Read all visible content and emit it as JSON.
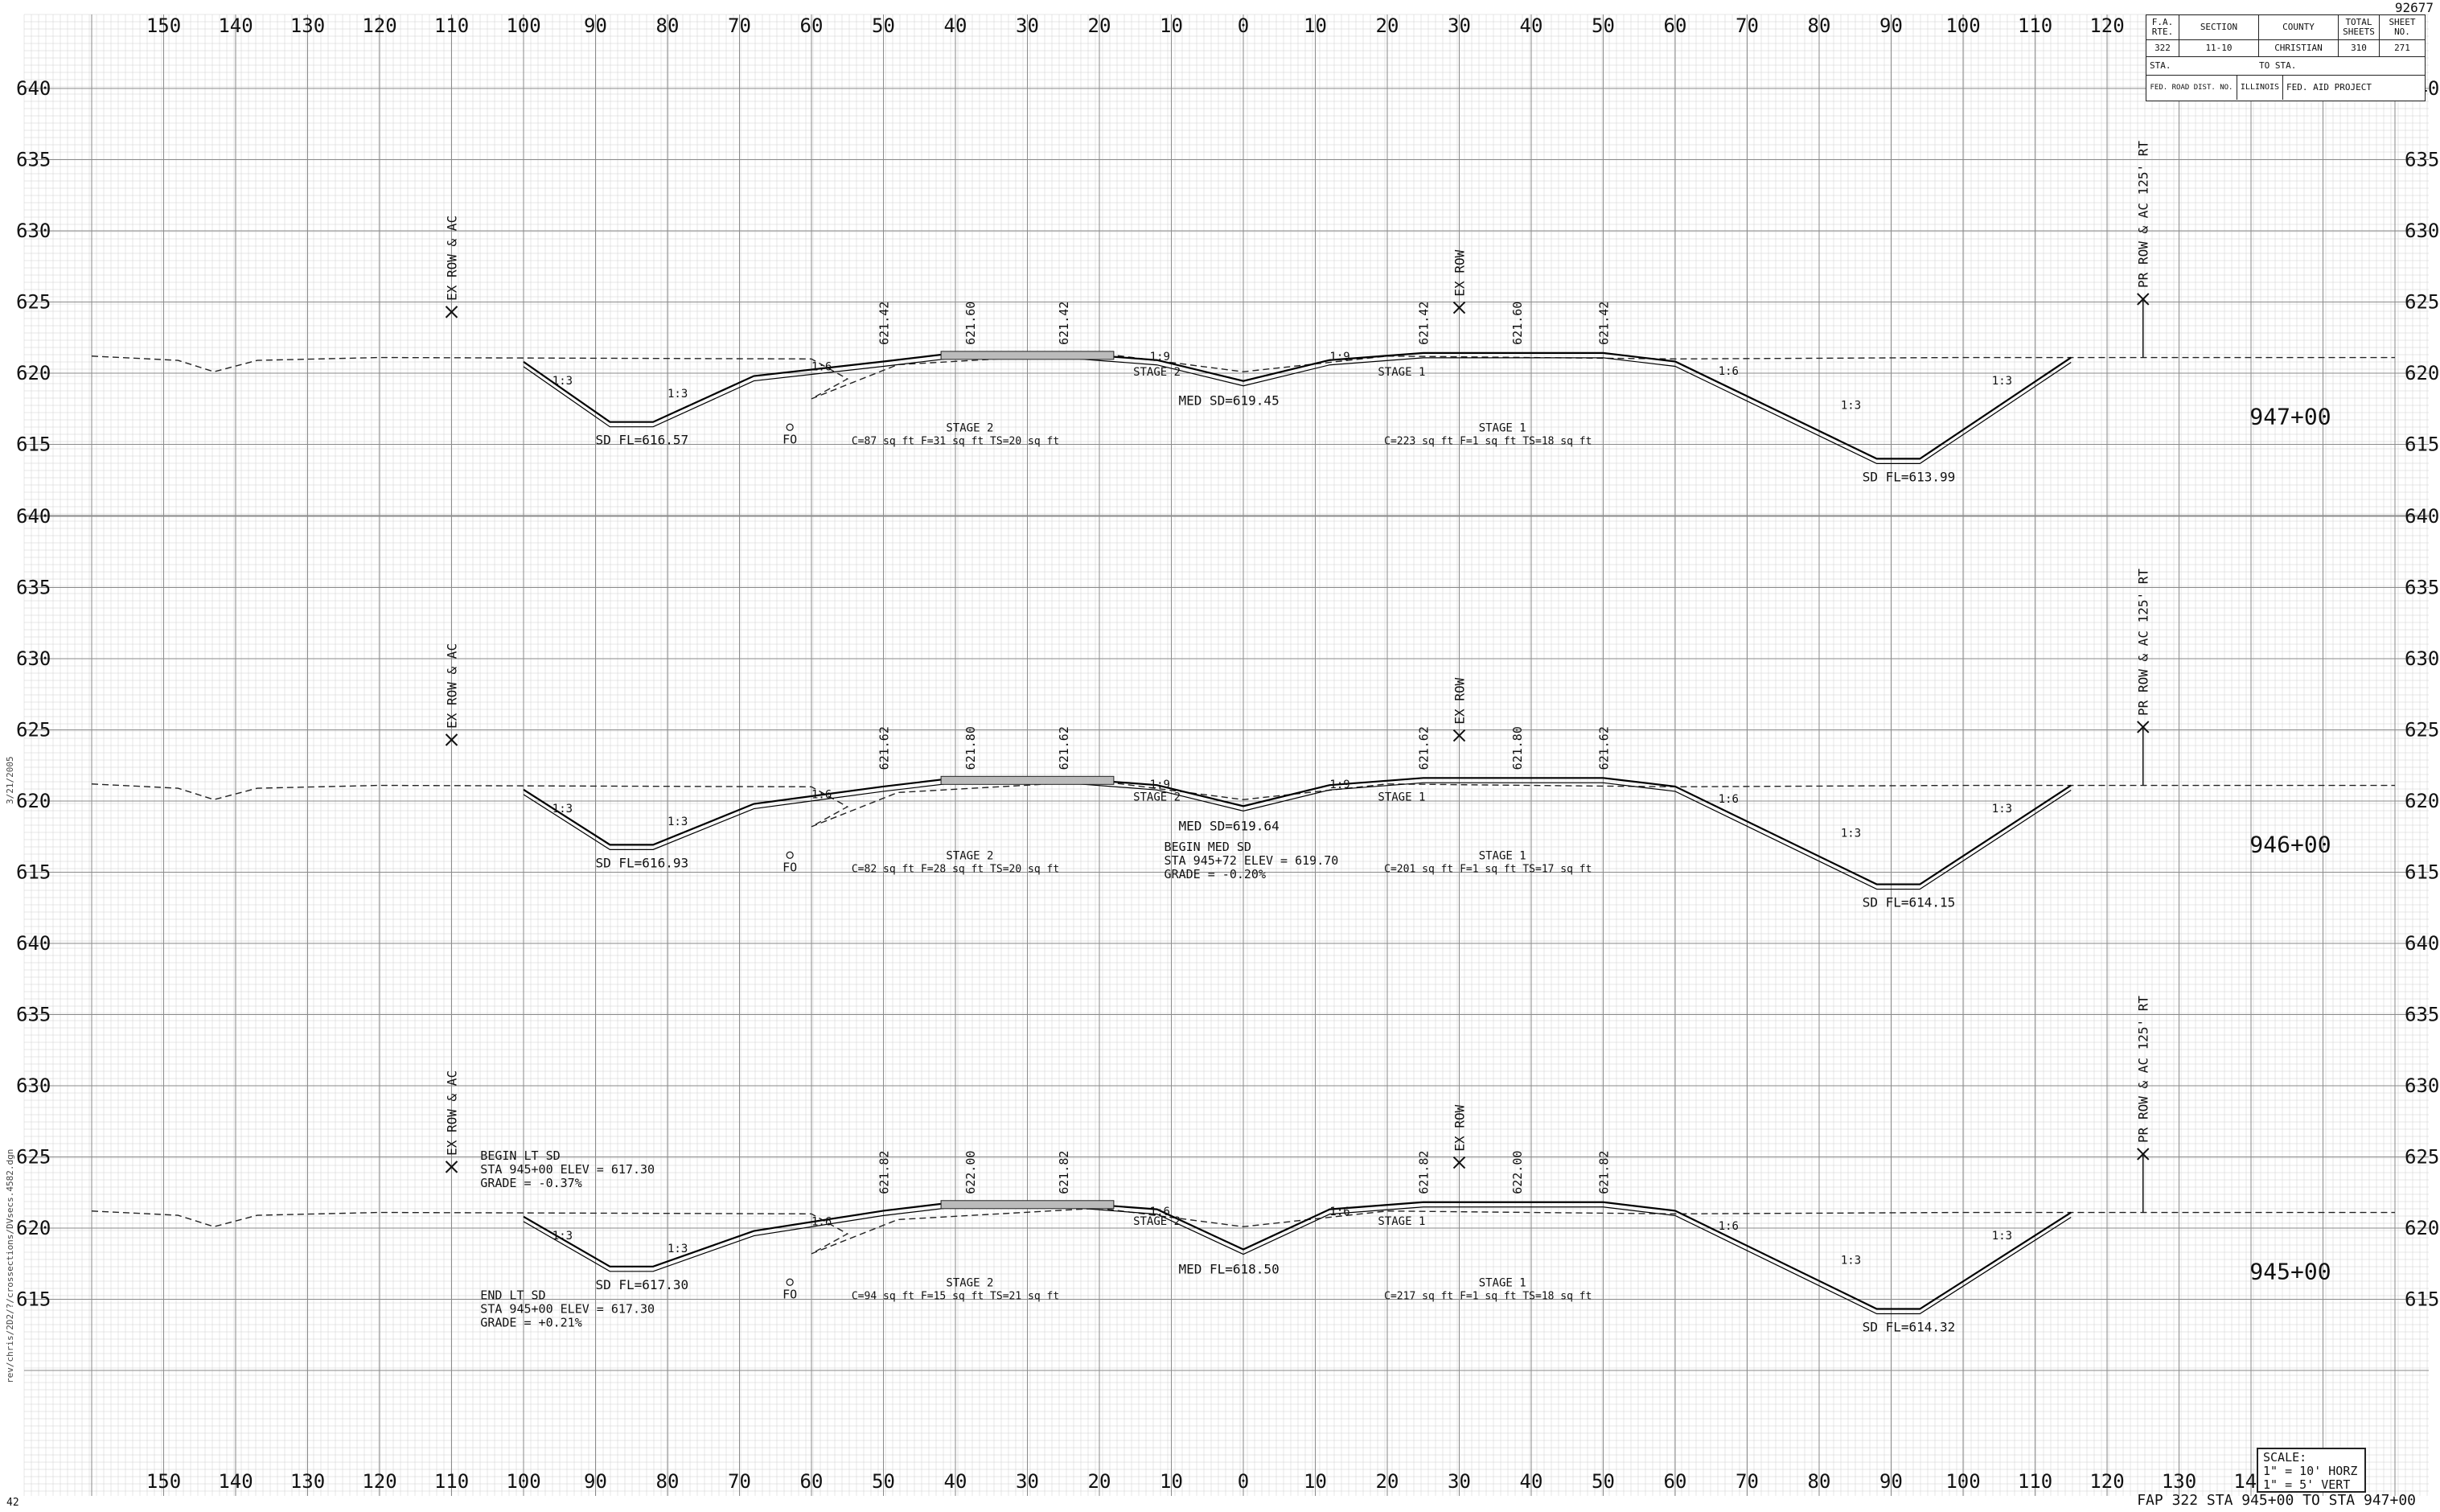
{
  "sheet_number": "92677",
  "footer_title": "FAP 322 STA 945+00 TO STA 947+00",
  "page_corner": "42",
  "side_text": {
    "filename": "rev/chris/2D2/?/crossections/DVsecs.4582.dgn",
    "date": "3/21/2005"
  },
  "title_block": {
    "col_heads": [
      "F.A.\nRTE.",
      "SECTION",
      "COUNTY",
      "TOTAL\nSHEETS",
      "SHEET\nNO."
    ],
    "values": [
      "322",
      "11-10",
      "CHRISTIAN",
      "310",
      "271"
    ],
    "sta_label": "STA.",
    "to_sta_label": "TO STA.",
    "district_label": "FED. ROAD DIST. NO.",
    "state": "ILLINOIS",
    "project_label": "FED. AID PROJECT"
  },
  "scale_note": {
    "title": "SCALE:",
    "horz": "1\" = 10' HORZ",
    "vert": "1\" = 5' VERT"
  },
  "offset_labels": [
    "150",
    "140",
    "130",
    "120",
    "110",
    "100",
    "90",
    "80",
    "70",
    "60",
    "50",
    "40",
    "30",
    "20",
    "10",
    "0",
    "10",
    "20",
    "30",
    "40",
    "50",
    "60",
    "70",
    "80",
    "90",
    "100",
    "110",
    "120",
    "130",
    "140",
    "150"
  ],
  "sections": [
    {
      "station": "947+00",
      "elev_labels": [
        "640",
        "635",
        "630",
        "625",
        "620",
        "615"
      ],
      "ex_row_left": "EX ROW & AC",
      "ex_row_mid": "EX ROW",
      "pr_row_right": "PR ROW & AC 125' RT",
      "grade_labels": [
        "621.42",
        "621.60",
        "621.42",
        "621.42",
        "621.60",
        "621.42"
      ],
      "slopes": [
        "1:3",
        "1:3",
        "1:6",
        "1:9",
        "1:9",
        "1:6",
        "1:3",
        "1:3"
      ],
      "stage2_label": "STAGE 2",
      "stage1_label": "STAGE 1",
      "lt_ditch": "SD FL=616.57",
      "med_ditch": "MED SD=619.45",
      "rt_ditch": "SD FL=613.99",
      "fo": "FO",
      "stage2_title": "STAGE 2",
      "stage2_qty": "C=87 sq ft   F=31 sq ft   TS=20 sq ft",
      "stage1_title": "STAGE 1",
      "stage1_qty": "C=223 sq ft   F=1 sq ft   TS=18 sq ft",
      "note_left": [],
      "note_left_lower": [],
      "note_med": []
    },
    {
      "station": "946+00",
      "elev_labels": [
        "640",
        "635",
        "630",
        "625",
        "620",
        "615"
      ],
      "ex_row_left": "EX ROW & AC",
      "ex_row_mid": "EX ROW",
      "pr_row_right": "PR ROW & AC 125' RT",
      "grade_labels": [
        "621.62",
        "621.80",
        "621.62",
        "621.62",
        "621.80",
        "621.62"
      ],
      "slopes": [
        "1:3",
        "1:3",
        "1:6",
        "1:9",
        "1:9",
        "1:6",
        "1:3",
        "1:3"
      ],
      "stage2_label": "STAGE 2",
      "stage1_label": "STAGE 1",
      "lt_ditch": "SD FL=616.93",
      "med_ditch": "MED SD=619.64",
      "rt_ditch": "SD FL=614.15",
      "fo": "FO",
      "stage2_title": "STAGE 2",
      "stage2_qty": "C=82 sq ft   F=28 sq ft   TS=20 sq ft",
      "stage1_title": "STAGE 1",
      "stage1_qty": "C=201 sq ft   F=1 sq ft   TS=17 sq ft",
      "note_left": [],
      "note_left_lower": [],
      "note_med": [
        "BEGIN MED SD",
        "STA 945+72 ELEV = 619.70",
        "GRADE = -0.20%"
      ]
    },
    {
      "station": "945+00",
      "elev_labels": [
        "640",
        "635",
        "630",
        "625",
        "620",
        "615"
      ],
      "ex_row_left": "EX ROW & AC",
      "ex_row_mid": "EX ROW",
      "pr_row_right": "PR ROW & AC 125' RT",
      "grade_labels": [
        "621.82",
        "622.00",
        "621.82",
        "621.82",
        "622.00",
        "621.82"
      ],
      "slopes": [
        "1:3",
        "1:3",
        "1:6",
        "1:6",
        "1:6",
        "1:6",
        "1:3",
        "1:3"
      ],
      "stage2_label": "STAGE 2",
      "stage1_label": "STAGE 1",
      "lt_ditch": "SD FL=617.30",
      "med_ditch": "MED FL=618.50",
      "rt_ditch": "SD FL=614.32",
      "fo": "FO",
      "stage2_title": "STAGE 2",
      "stage2_qty": "C=94 sq ft   F=15 sq ft   TS=21 sq ft",
      "stage1_title": "STAGE 1",
      "stage1_qty": "C=217 sq ft   F=1 sq ft   TS=18 sq ft",
      "note_left": [
        "BEGIN LT SD",
        "STA 945+00 ELEV = 617.30",
        "GRADE = -0.37%"
      ],
      "note_left_lower": [
        "END LT SD",
        "STA 945+00 ELEV = 617.30",
        "GRADE = +0.21%"
      ],
      "note_med": []
    }
  ]
}
